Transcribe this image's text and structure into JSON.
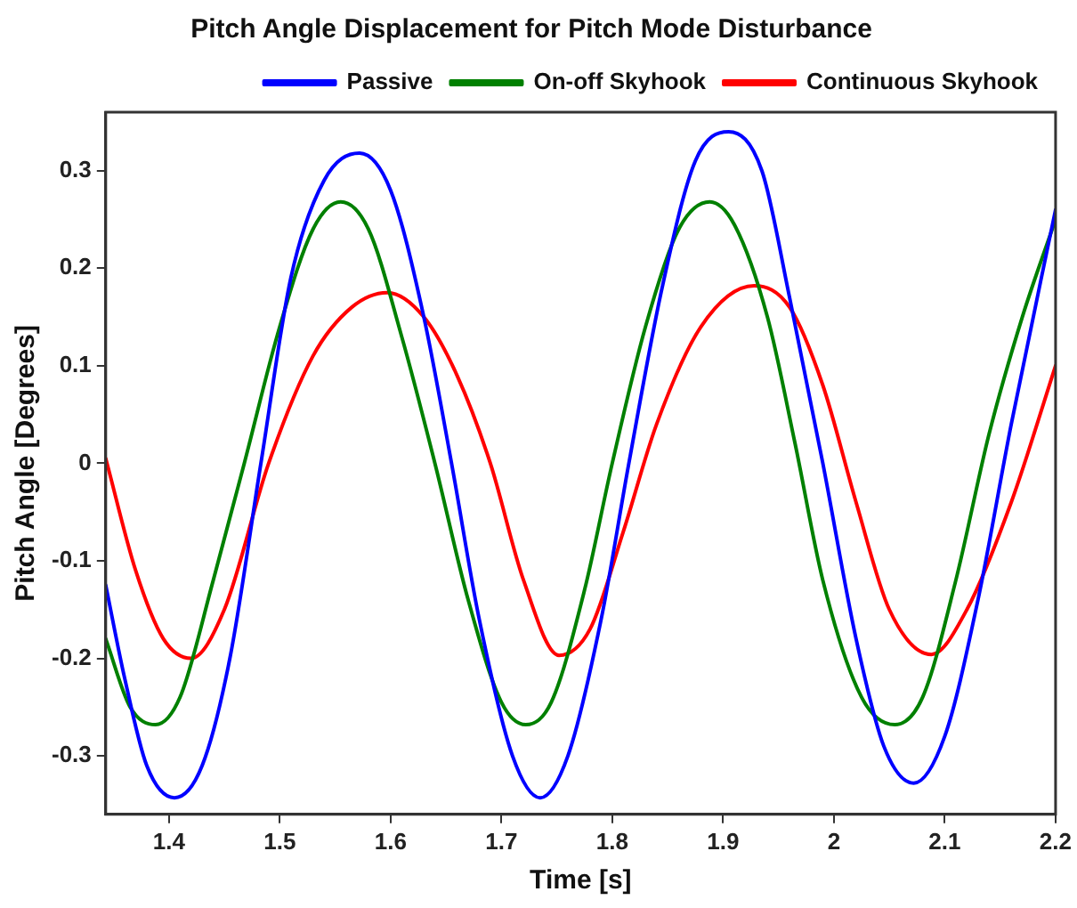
{
  "chart_data": {
    "type": "line",
    "title": "Pitch Angle Displacement for Pitch Mode Disturbance",
    "xlabel": "Time [s]",
    "ylabel": "Pitch Angle [Degrees]",
    "xlim": [
      1.343,
      2.2
    ],
    "xticks": [
      1.4,
      1.5,
      1.6,
      1.7,
      1.8,
      1.9,
      {
        "value": 2,
        "label": "2"
      },
      2.1,
      2.2
    ],
    "ylim": [
      -0.36,
      0.36
    ],
    "yticks": [
      -0.3,
      -0.2,
      -0.1,
      {
        "value": 0,
        "label": "0"
      },
      0.1,
      0.2,
      0.3
    ],
    "grid": false,
    "legend": "top right",
    "marker": "none",
    "line_style": "solid",
    "series": [
      {
        "name": "Passive",
        "color": "#0000ff",
        "x": [
          1.343,
          1.36,
          1.38,
          1.405,
          1.43,
          1.455,
          1.483,
          1.51,
          1.54,
          1.572,
          1.6,
          1.63,
          1.655,
          1.68,
          1.71,
          1.735,
          1.76,
          1.79,
          1.815,
          1.845,
          1.875,
          1.905,
          1.935,
          1.96,
          1.99,
          2.02,
          2.045,
          2.072,
          2.1,
          2.13,
          2.16,
          2.2
        ],
        "values": [
          -0.125,
          -0.22,
          -0.31,
          -0.343,
          -0.31,
          -0.2,
          0.0,
          0.19,
          0.29,
          0.318,
          0.28,
          0.15,
          0.0,
          -0.16,
          -0.3,
          -0.343,
          -0.3,
          -0.16,
          0.0,
          0.18,
          0.31,
          0.34,
          0.3,
          0.17,
          0.0,
          -0.18,
          -0.29,
          -0.328,
          -0.28,
          -0.14,
          0.04,
          0.26
        ]
      },
      {
        "name": "On-off Skyhook",
        "color": "#008000",
        "x": [
          1.343,
          1.365,
          1.388,
          1.41,
          1.44,
          1.468,
          1.5,
          1.53,
          1.555,
          1.58,
          1.61,
          1.64,
          1.67,
          1.7,
          1.722,
          1.745,
          1.775,
          1.8,
          1.83,
          1.86,
          1.888,
          1.91,
          1.94,
          1.965,
          1.99,
          2.025,
          2.055,
          2.08,
          2.11,
          2.14,
          2.17,
          2.2
        ],
        "values": [
          -0.18,
          -0.25,
          -0.268,
          -0.24,
          -0.12,
          0.0,
          0.14,
          0.24,
          0.268,
          0.24,
          0.13,
          0.0,
          -0.14,
          -0.245,
          -0.268,
          -0.245,
          -0.13,
          0.0,
          0.14,
          0.24,
          0.268,
          0.245,
          0.15,
          0.02,
          -0.12,
          -0.24,
          -0.268,
          -0.24,
          -0.12,
          0.03,
          0.15,
          0.25
        ]
      },
      {
        "name": "Continuous Skyhook",
        "color": "#ff0000",
        "x": [
          1.343,
          1.37,
          1.395,
          1.42,
          1.45,
          1.49,
          1.53,
          1.565,
          1.597,
          1.63,
          1.66,
          1.69,
          1.72,
          1.752,
          1.78,
          1.81,
          1.84,
          1.88,
          1.928,
          1.96,
          1.99,
          2.02,
          2.05,
          2.088,
          2.12,
          2.16,
          2.2
        ],
        "values": [
          0.005,
          -0.11,
          -0.18,
          -0.2,
          -0.15,
          0.0,
          0.11,
          0.16,
          0.175,
          0.15,
          0.09,
          0.0,
          -0.12,
          -0.197,
          -0.17,
          -0.07,
          0.04,
          0.14,
          0.182,
          0.16,
          0.08,
          -0.04,
          -0.15,
          -0.196,
          -0.15,
          -0.04,
          0.1
        ]
      }
    ]
  }
}
